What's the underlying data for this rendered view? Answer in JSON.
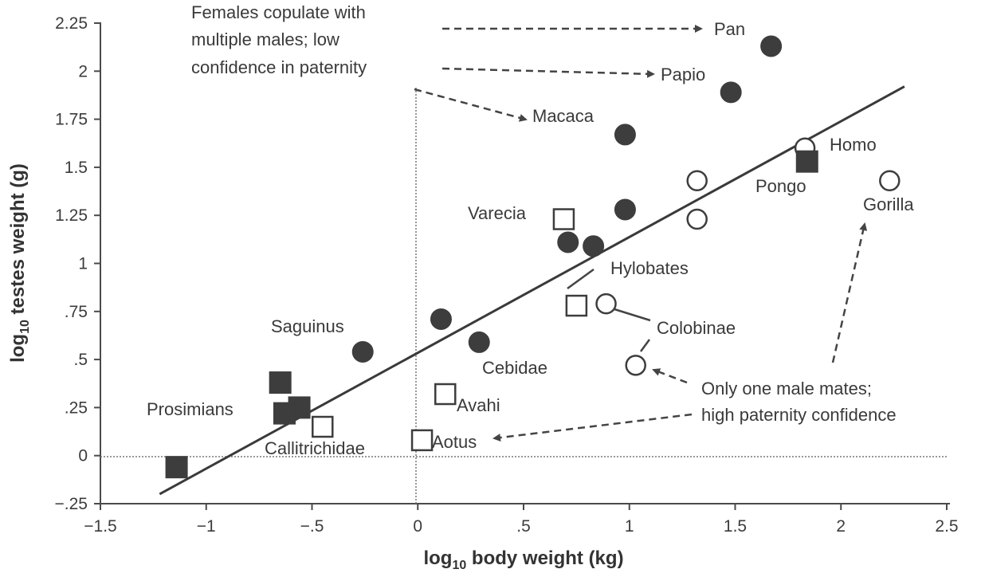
{
  "chart_data": {
    "type": "scatter",
    "title": "",
    "xlabel": "log",
    "xlabel_sub": "10",
    "xlabel_rest": " body weight (kg)",
    "ylabel": "log",
    "ylabel_sub": "10",
    "ylabel_rest": " testes weight (g)",
    "xlim": [
      -1.5,
      2.5
    ],
    "ylim": [
      -0.25,
      2.25
    ],
    "x_ticks": [
      {
        "value": -1.5,
        "label": "−1.5"
      },
      {
        "value": -1,
        "label": "−1"
      },
      {
        "value": -0.5,
        "label": "−.5"
      },
      {
        "value": 0,
        "label": "0"
      },
      {
        "value": 0.5,
        "label": ".5"
      },
      {
        "value": 1,
        "label": "1"
      },
      {
        "value": 1.5,
        "label": "1.5"
      },
      {
        "value": 2,
        "label": "2"
      },
      {
        "value": 2.5,
        "label": "2.5"
      }
    ],
    "y_ticks": [
      {
        "value": -0.25,
        "label": "−.25"
      },
      {
        "value": 0,
        "label": "0"
      },
      {
        "value": 0.25,
        "label": ".25"
      },
      {
        "value": 0.5,
        "label": ".5"
      },
      {
        "value": 0.75,
        "label": ".75"
      },
      {
        "value": 1,
        "label": "1"
      },
      {
        "value": 1.25,
        "label": "1.25"
      },
      {
        "value": 1.5,
        "label": "1.5"
      },
      {
        "value": 1.75,
        "label": "1.75"
      },
      {
        "value": 2,
        "label": "2"
      },
      {
        "value": 2.25,
        "label": "2.25"
      }
    ],
    "series": [
      {
        "name": "filled-circles",
        "marker": "circle-filled",
        "points": [
          {
            "x": 1.67,
            "y": 2.13
          },
          {
            "x": 1.48,
            "y": 1.89
          },
          {
            "x": 0.98,
            "y": 1.67
          },
          {
            "x": 0.98,
            "y": 1.28
          },
          {
            "x": 0.71,
            "y": 1.11
          },
          {
            "x": 0.83,
            "y": 1.09
          },
          {
            "x": 0.11,
            "y": 0.71
          },
          {
            "x": 0.29,
            "y": 0.59
          },
          {
            "x": -0.26,
            "y": 0.54
          }
        ]
      },
      {
        "name": "open-circles",
        "marker": "circle-open",
        "points": [
          {
            "x": 1.32,
            "y": 1.43
          },
          {
            "x": 1.32,
            "y": 1.23
          },
          {
            "x": 1.83,
            "y": 1.6
          },
          {
            "x": 2.23,
            "y": 1.43
          },
          {
            "x": 0.89,
            "y": 0.79
          },
          {
            "x": 1.03,
            "y": 0.47
          }
        ]
      },
      {
        "name": "filled-squares",
        "marker": "square-filled",
        "points": [
          {
            "x": 1.84,
            "y": 1.53
          },
          {
            "x": -0.65,
            "y": 0.38
          },
          {
            "x": -0.56,
            "y": 0.25
          },
          {
            "x": -0.63,
            "y": 0.22
          },
          {
            "x": -1.14,
            "y": -0.06
          }
        ]
      },
      {
        "name": "open-squares",
        "marker": "square-open",
        "points": [
          {
            "x": 0.69,
            "y": 1.23
          },
          {
            "x": 0.75,
            "y": 0.78
          },
          {
            "x": 0.13,
            "y": 0.32
          },
          {
            "x": -0.45,
            "y": 0.15
          },
          {
            "x": 0.02,
            "y": 0.08
          }
        ]
      }
    ],
    "regression_line": {
      "x": [
        -1.22,
        2.3
      ],
      "y": [
        -0.2,
        1.92
      ]
    },
    "reference_lines": [
      {
        "axis": "x",
        "value": 0
      },
      {
        "axis": "y",
        "value": 0
      }
    ],
    "taxon_labels": [
      "Pan",
      "Papio",
      "Macaca",
      "Homo",
      "Pongo",
      "Gorilla",
      "Varecia",
      "Hylobates",
      "Colobinae",
      "Saguinus",
      "Cebidae",
      "Prosimians",
      "Avahi",
      "Callitrichidae",
      "Aotus"
    ],
    "annotations": [
      {
        "name": "multi-male",
        "lines": [
          "Females copulate with",
          "multiple males; low",
          "confidence in paternity"
        ]
      },
      {
        "name": "single-male",
        "lines": [
          "Only one male mates;",
          "high paternity confidence"
        ]
      }
    ]
  }
}
